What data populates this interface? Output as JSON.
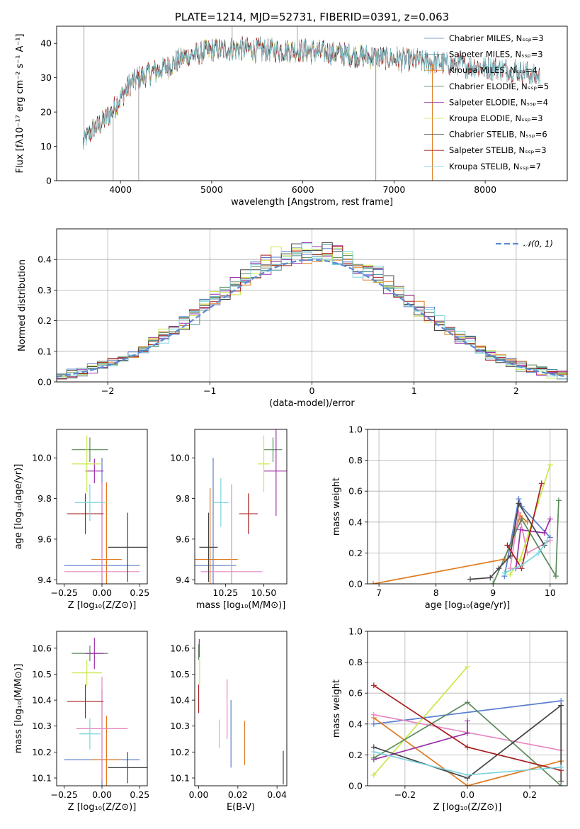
{
  "chart_data": [
    {
      "id": "spectrum",
      "type": "line",
      "title": "PLATE=1214, MJD=52731, FIBERID=0391, z=0.063",
      "xlabel": "wavelength [Angstrom, rest frame]",
      "ylabel": "Flux [fλ10⁻¹⁷ erg cm⁻² s⁻¹ A⁻¹]",
      "xlim": [
        3300,
        8900
      ],
      "ylim": [
        0,
        45
      ],
      "xticks": [
        4000,
        5000,
        6000,
        7000,
        8000
      ],
      "yticks": [
        0,
        10,
        20,
        30,
        40
      ],
      "grid": false,
      "legend_position": "top-right",
      "continuum": {
        "x": [
          3590,
          3700,
          3800,
          3900,
          4000,
          4100,
          4200,
          4300,
          4500,
          4700,
          5000,
          5300,
          5600,
          6000,
          6400,
          6800,
          7200,
          7600,
          8000,
          8400,
          8600
        ],
        "y": [
          11,
          15,
          17,
          20,
          24,
          28,
          30,
          31,
          33,
          36,
          38,
          38.5,
          38,
          38,
          37,
          36,
          35,
          34,
          33,
          32,
          30
        ]
      },
      "series": [
        {
          "name": "Chabrier MILES, N_SSP=3",
          "color": "#5b7fcf",
          "xmax": 7400
        },
        {
          "name": "Salpeter MILES, N_SSP=3",
          "color": "#3f8f9a",
          "xmax": 7400
        },
        {
          "name": "Kroupa MILES, N_SSP=4",
          "color": "#e07b1f",
          "xmax": 7400
        },
        {
          "name": "Chabrier ELODIE, N_SSP=5",
          "color": "#5a8a5a",
          "xmax": 6800
        },
        {
          "name": "Salpeter ELODIE, N_SSP=4",
          "color": "#9b30a8",
          "xmax": 6800
        },
        {
          "name": "Kroupa ELODIE, N_SSP=3",
          "color": "#c9e84a",
          "xmax": 6800
        },
        {
          "name": "Chabrier STELIB, N_SSP=6",
          "color": "#444444",
          "xmax": 8700
        },
        {
          "name": "Salpeter STELIB, N_SSP=3",
          "color": "#a81e1e",
          "xmax": 8700
        },
        {
          "name": "Kroupa STELIB, N_SSP=7",
          "color": "#7dd3de",
          "xmax": 8700
        }
      ],
      "data_line": {
        "color": "#888888"
      }
    },
    {
      "id": "residuals",
      "type": "histogram",
      "xlabel": "(data-model)/error",
      "ylabel": "Normed distribution",
      "xlim": [
        -2.5,
        2.5
      ],
      "ylim": [
        0,
        0.5
      ],
      "xticks": [
        -2,
        -1,
        0,
        1,
        2
      ],
      "yticks": [
        0.0,
        0.1,
        0.2,
        0.3,
        0.4
      ],
      "grid": true,
      "legend_position": "top-right",
      "bin_width": 0.1,
      "reference": {
        "name": "𝒩(0, 1)",
        "color": "#5b8bd6",
        "mean": 0,
        "std": 1
      }
    },
    {
      "id": "age-vs-Z",
      "type": "errorbar",
      "xlabel": "Z [log₁₀(Z/Z⊙)]",
      "ylabel": "age  [log₁₀(age/yr)]",
      "xlim": [
        -0.3,
        0.3
      ],
      "ylim": [
        9.38,
        10.14
      ],
      "xticks": [
        -0.25,
        0.0,
        0.25
      ],
      "yticks": [
        9.4,
        9.6,
        9.8,
        10.0
      ],
      "points": [
        {
          "color": "#5b7fcf",
          "x": 0.0,
          "xerr": 0.25,
          "y": 9.47,
          "yerr": 0.53
        },
        {
          "color": "#e07b1f",
          "x": 0.03,
          "xerr": 0.1,
          "y": 9.5,
          "yerr": 0.38
        },
        {
          "color": "#e887c0",
          "x": 0.0,
          "xerr": 0.25,
          "y": 9.44,
          "yerr": 0.44
        },
        {
          "color": "#5a8a5a",
          "x": -0.08,
          "xerr": 0.12,
          "y": 10.04,
          "yerr": 0.06
        },
        {
          "color": "#9b30a8",
          "x": -0.05,
          "xerr": 0.06,
          "y": 9.935,
          "yerr": 0.06
        },
        {
          "color": "#c9e84a",
          "x": -0.1,
          "xerr": 0.1,
          "y": 9.97,
          "yerr": 0.14
        },
        {
          "color": "#444444",
          "x": 0.17,
          "xerr": 0.13,
          "y": 9.56,
          "yerr": 0.17
        },
        {
          "color": "#a81e1e",
          "x": -0.11,
          "xerr": 0.12,
          "y": 9.725,
          "yerr": 0.1
        },
        {
          "color": "#7dd3de",
          "x": -0.08,
          "xerr": 0.1,
          "y": 9.78,
          "yerr": 0.09
        }
      ]
    },
    {
      "id": "age-vs-mass",
      "type": "errorbar",
      "xlabel": "mass [log₁₀(M/M⊙)]",
      "ylabel": "",
      "xlim": [
        10.05,
        10.65
      ],
      "ylim": [
        9.38,
        10.14
      ],
      "xticks": [
        10.25,
        10.5
      ],
      "yticks": [
        9.4,
        9.6,
        9.8,
        10.0
      ],
      "points": [
        {
          "color": "#5b7fcf",
          "x": 10.17,
          "xerr": 0.15,
          "y": 9.47,
          "yerr": 0.53
        },
        {
          "color": "#e07b1f",
          "x": 10.15,
          "xerr": 0.18,
          "y": 9.5,
          "yerr": 0.35
        },
        {
          "color": "#e887c0",
          "x": 10.29,
          "xerr": 0.2,
          "y": 9.44,
          "yerr": 0.43
        },
        {
          "color": "#5a8a5a",
          "x": 10.56,
          "xerr": 0.06,
          "y": 10.04,
          "yerr": 0.06
        },
        {
          "color": "#9b30a8",
          "x": 10.58,
          "xerr": 0.08,
          "y": 9.935,
          "yerr": 0.22
        },
        {
          "color": "#c9e84a",
          "x": 10.5,
          "xerr": 0.04,
          "y": 9.97,
          "yerr": 0.14
        },
        {
          "color": "#444444",
          "x": 10.14,
          "xerr": 0.06,
          "y": 9.56,
          "yerr": 0.17
        },
        {
          "color": "#a81e1e",
          "x": 10.4,
          "xerr": 0.06,
          "y": 9.725,
          "yerr": 0.1
        },
        {
          "color": "#7dd3de",
          "x": 10.22,
          "xerr": 0.05,
          "y": 9.78,
          "yerr": 0.12
        }
      ]
    },
    {
      "id": "weight-vs-age",
      "type": "line",
      "xlabel": "age  [log₁₀(age/yr)]",
      "ylabel": "mass weight",
      "xlim": [
        6.8,
        10.3
      ],
      "ylim": [
        0,
        1.0
      ],
      "xticks": [
        7,
        8,
        9,
        10
      ],
      "yticks": [
        0.0,
        0.2,
        0.4,
        0.6,
        0.8,
        1.0
      ],
      "grid": true,
      "series": [
        {
          "color": "#e07b1f",
          "x": [
            6.9,
            9.2,
            9.48,
            9.6
          ],
          "y": [
            0.0,
            0.16,
            0.44,
            0.4
          ]
        },
        {
          "color": "#5b7fcf",
          "x": [
            9.2,
            9.45,
            9.5,
            10.0
          ],
          "y": [
            0.05,
            0.55,
            0.5,
            0.3
          ]
        },
        {
          "color": "#e887c0",
          "x": [
            9.3,
            9.45,
            9.6,
            10.0
          ],
          "y": [
            0.1,
            0.46,
            0.2,
            0.28
          ]
        },
        {
          "color": "#c9e84a",
          "x": [
            9.3,
            9.48,
            10.0
          ],
          "y": [
            0.06,
            0.16,
            0.77
          ]
        },
        {
          "color": "#9b30a8",
          "x": [
            9.4,
            9.48,
            9.9,
            10.0
          ],
          "y": [
            0.1,
            0.35,
            0.33,
            0.42
          ]
        },
        {
          "color": "#5a8a5a",
          "x": [
            9.0,
            9.5,
            10.1,
            10.15
          ],
          "y": [
            0.0,
            0.42,
            0.05,
            0.54
          ]
        },
        {
          "color": "#444444",
          "x": [
            8.6,
            8.95,
            9.1,
            9.3,
            9.45,
            9.9
          ],
          "y": [
            0.03,
            0.04,
            0.1,
            0.18,
            0.52,
            0.25
          ]
        },
        {
          "color": "#a81e1e",
          "x": [
            9.25,
            9.5,
            9.85
          ],
          "y": [
            0.25,
            0.1,
            0.65
          ]
        },
        {
          "color": "#7dd3de",
          "x": [
            9.2,
            9.5,
            9.8,
            9.95
          ],
          "y": [
            0.07,
            0.12,
            0.2,
            0.28
          ]
        }
      ]
    },
    {
      "id": "mass-vs-Z",
      "type": "errorbar",
      "xlabel": "Z [log₁₀(Z/Z⊙)]",
      "ylabel": "mass [log₁₀(M/M⊙)]",
      "xlim": [
        -0.3,
        0.3
      ],
      "ylim": [
        10.07,
        10.665
      ],
      "xticks": [
        -0.25,
        0.0,
        0.25
      ],
      "yticks": [
        10.1,
        10.2,
        10.3,
        10.4,
        10.5,
        10.6
      ],
      "points": [
        {
          "color": "#5b7fcf",
          "x": 0.0,
          "xerr": 0.25,
          "y": 10.17,
          "yerr": 0.27
        },
        {
          "color": "#e07b1f",
          "x": 0.03,
          "xerr": 0.1,
          "y": 10.17,
          "yerr": 0.17
        },
        {
          "color": "#e887c0",
          "x": 0.0,
          "xerr": 0.17,
          "y": 10.29,
          "yerr": 0.2
        },
        {
          "color": "#5a8a5a",
          "x": -0.08,
          "xerr": 0.12,
          "y": 10.58,
          "yerr": 0.03
        },
        {
          "color": "#9b30a8",
          "x": -0.05,
          "xerr": 0.06,
          "y": 10.58,
          "yerr": 0.06
        },
        {
          "color": "#c9e84a",
          "x": -0.1,
          "xerr": 0.1,
          "y": 10.505,
          "yerr": 0.05
        },
        {
          "color": "#444444",
          "x": 0.17,
          "xerr": 0.13,
          "y": 10.14,
          "yerr": 0.06
        },
        {
          "color": "#a81e1e",
          "x": -0.11,
          "xerr": 0.12,
          "y": 10.395,
          "yerr": 0.065
        },
        {
          "color": "#7dd3de",
          "x": -0.08,
          "xerr": 0.07,
          "y": 10.27,
          "yerr": 0.06
        }
      ]
    },
    {
      "id": "mass-vs-EBV",
      "type": "errorbar",
      "xlabel": "E(B-V)",
      "ylabel": "",
      "xlim": [
        -0.002,
        0.045
      ],
      "ylim": [
        10.07,
        10.665
      ],
      "xticks": [
        0.0,
        0.02,
        0.04
      ],
      "yticks": [
        10.1,
        10.2,
        10.3,
        10.4,
        10.5,
        10.6
      ],
      "points": [
        {
          "color": "#5b7fcf",
          "x": 0.0165,
          "xerr": 0,
          "y": 10.27,
          "yerr": 0.13
        },
        {
          "color": "#e07b1f",
          "x": 0.0235,
          "xerr": 0,
          "y": 10.235,
          "yerr": 0.085
        },
        {
          "color": "#e887c0",
          "x": 0.0145,
          "xerr": 0,
          "y": 10.365,
          "yerr": 0.115
        },
        {
          "color": "#5a8a5a",
          "x": 0.0,
          "xerr": 0,
          "y": 10.585,
          "yerr": 0.03
        },
        {
          "color": "#9b30a8",
          "x": 0.0003,
          "xerr": 0,
          "y": 10.6,
          "yerr": 0.035
        },
        {
          "color": "#c9e84a",
          "x": 0.0005,
          "xerr": 0,
          "y": 10.51,
          "yerr": 0.05
        },
        {
          "color": "#444444",
          "x": 0.0432,
          "xerr": 0,
          "y": 10.14,
          "yerr": 0.065
        },
        {
          "color": "#a81e1e",
          "x": 0.0,
          "xerr": 0,
          "y": 10.405,
          "yerr": 0.055
        },
        {
          "color": "#7dd3de",
          "x": 0.0105,
          "xerr": 0,
          "y": 10.27,
          "yerr": 0.055
        }
      ]
    },
    {
      "id": "weight-vs-Z",
      "type": "line",
      "xlabel": "Z [log₁₀(Z/Z⊙)]",
      "ylabel": "mass weight",
      "xlim": [
        -0.32,
        0.32
      ],
      "ylim": [
        0,
        1.0
      ],
      "xticks": [
        -0.2,
        0.0,
        0.2
      ],
      "yticks": [
        0.0,
        0.2,
        0.4,
        0.6,
        0.8,
        1.0
      ],
      "grid": true,
      "series": [
        {
          "color": "#5b7fcf",
          "x": [
            -0.3,
            0.3
          ],
          "y": [
            0.4,
            0.55
          ]
        },
        {
          "color": "#e07b1f",
          "x": [
            -0.3,
            0.0,
            0.3
          ],
          "y": [
            0.44,
            0.0,
            0.16
          ]
        },
        {
          "color": "#e887c0",
          "x": [
            -0.3,
            0.3
          ],
          "y": [
            0.46,
            0.23
          ]
        },
        {
          "color": "#c9e84a",
          "x": [
            -0.3,
            0.0
          ],
          "y": [
            0.07,
            0.77
          ]
        },
        {
          "color": "#9b30a8",
          "x": [
            -0.3,
            0.0,
            0.0
          ],
          "y": [
            0.17,
            0.34,
            0.42
          ]
        },
        {
          "color": "#5a8a5a",
          "x": [
            -0.3,
            0.0,
            0.3
          ],
          "y": [
            0.18,
            0.54,
            0.0
          ]
        },
        {
          "color": "#444444",
          "x": [
            -0.3,
            0.0,
            0.3,
            0.3
          ],
          "y": [
            0.25,
            0.05,
            0.52,
            0.03
          ]
        },
        {
          "color": "#a81e1e",
          "x": [
            -0.3,
            0.0,
            0.3
          ],
          "y": [
            0.65,
            0.25,
            0.1
          ]
        },
        {
          "color": "#7dd3de",
          "x": [
            -0.3,
            0.0,
            0.3
          ],
          "y": [
            0.22,
            0.07,
            0.12
          ]
        }
      ]
    }
  ]
}
